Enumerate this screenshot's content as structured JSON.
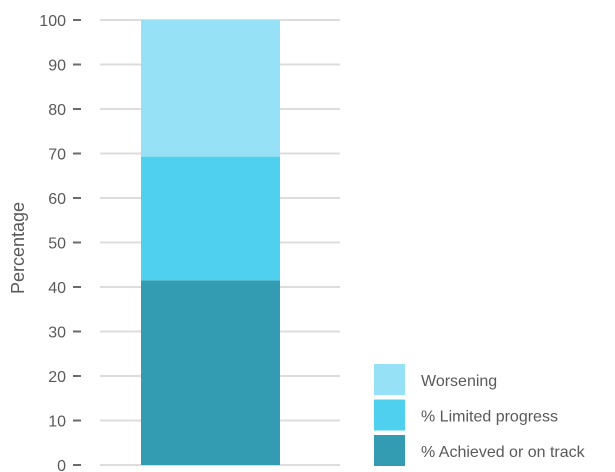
{
  "chart_data": {
    "type": "bar",
    "stacked": true,
    "categories": [
      ""
    ],
    "series": [
      {
        "name": "% Achieved or on track",
        "values": [
          41.5
        ],
        "color": "#339bb2"
      },
      {
        "name": "% Limited progress",
        "values": [
          27.8
        ],
        "color": "#4fd0ee"
      },
      {
        "name": "Worsening",
        "values": [
          30.7
        ],
        "color": "#96e1f5"
      }
    ],
    "title": "",
    "xlabel": "",
    "ylabel": "Percentage",
    "ylim": [
      0,
      100
    ],
    "yticks": [
      "0",
      "10",
      "20",
      "30",
      "40",
      "50",
      "60",
      "70",
      "80",
      "90",
      "100"
    ],
    "grid": true,
    "legend_position": "bottom-right",
    "legend_order": [
      "Worsening",
      "% Limited progress",
      "% Achieved or on track"
    ]
  }
}
